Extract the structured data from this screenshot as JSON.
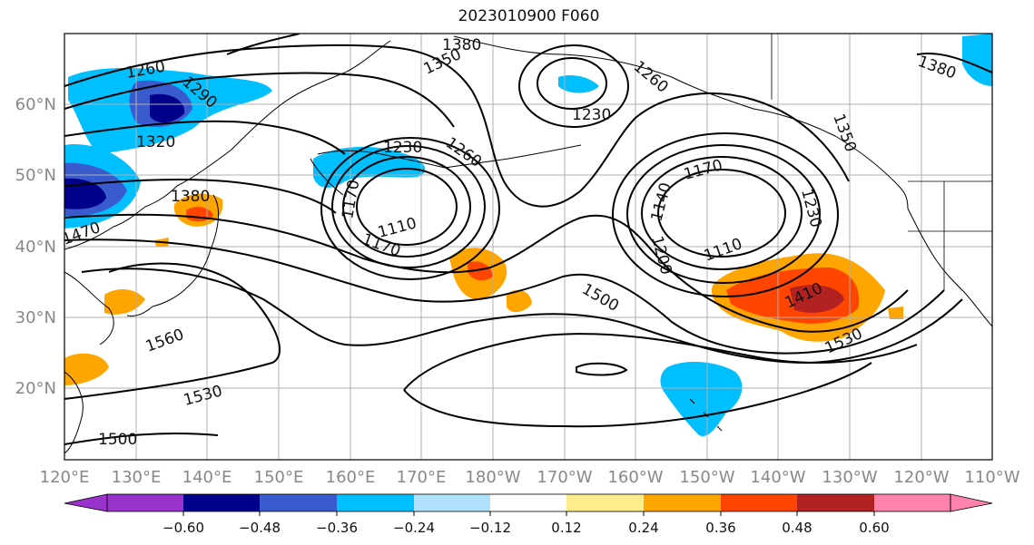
{
  "title": "2023010900 F060",
  "axes": {
    "lon_labels": [
      "120°E",
      "130°E",
      "140°E",
      "150°E",
      "160°E",
      "170°E",
      "180°W",
      "170°W",
      "160°W",
      "150°W",
      "140°W",
      "130°W",
      "120°W",
      "110°W"
    ],
    "lat_labels": [
      "60°N",
      "50°N",
      "40°N",
      "30°N",
      "20°N"
    ]
  },
  "contour_labels": [
    "1380",
    "1350",
    "1260",
    "1290",
    "1320",
    "1380",
    "1230",
    "1260",
    "1170",
    "1110",
    "1170",
    "1260",
    "1170",
    "1140",
    "1200",
    "1110",
    "1230",
    "1350",
    "1380",
    "1410",
    "1500",
    "1530",
    "1560",
    "1530",
    "1500",
    "1470",
    "1230"
  ],
  "colorbar": {
    "ticks": [
      "−0.60",
      "−0.48",
      "−0.36",
      "−0.24",
      "−0.12",
      "0.12",
      "0.24",
      "0.36",
      "0.48",
      "0.60"
    ],
    "colors": [
      "#9932cc",
      "#00008b",
      "#3a5bcd",
      "#00bfff",
      "#b0e2ff",
      "#ffffff",
      "#ffec8b",
      "#ffa500",
      "#ff4500",
      "#b22222",
      "#ff82ab"
    ]
  }
}
